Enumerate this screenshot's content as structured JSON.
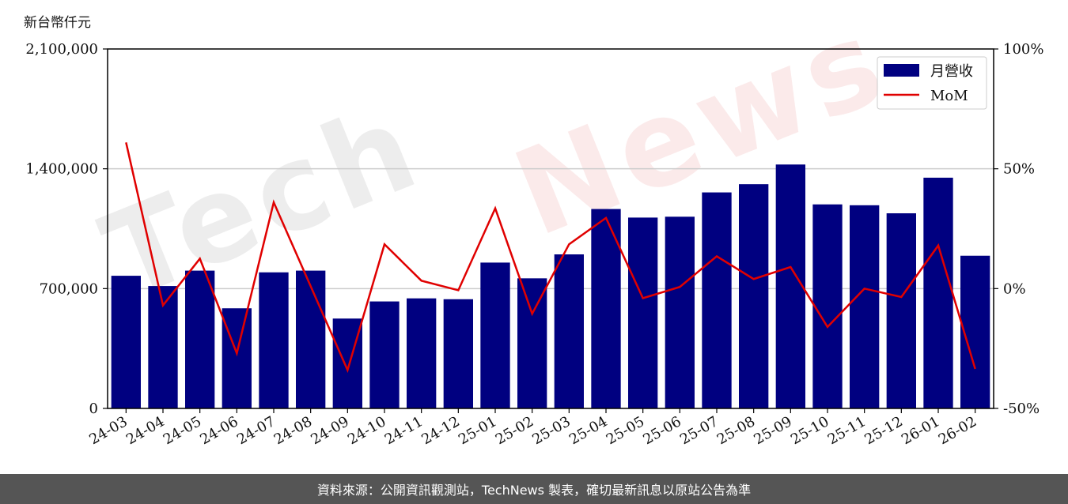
{
  "unit_label": "新台幣仟元",
  "footer_text": "資料來源：公開資訊觀測站，TechNews 製表，確切最新訊息以原站公告為準",
  "watermark": {
    "left": "Tech",
    "right": "News"
  },
  "colors": {
    "bar": "#000080",
    "line": "#e00000",
    "grid": "#cccccc",
    "footer_bg": "#555555"
  },
  "chart_data": {
    "type": "bar",
    "categories": [
      "24-03",
      "24-04",
      "24-05",
      "24-06",
      "24-07",
      "24-08",
      "24-09",
      "24-10",
      "24-11",
      "24-12",
      "25-01",
      "25-02",
      "25-03",
      "25-04",
      "25-05",
      "25-06",
      "25-07",
      "25-08",
      "25-09",
      "25-10",
      "25-11",
      "25-12",
      "26-01",
      "26-02"
    ],
    "series": [
      {
        "name": "月營收",
        "type": "bar",
        "axis": "left",
        "values": [
          775000,
          715000,
          805000,
          585000,
          795000,
          805000,
          525000,
          625000,
          643000,
          638000,
          852000,
          760000,
          900000,
          1165000,
          1115000,
          1120000,
          1262000,
          1310000,
          1425000,
          1192000,
          1187000,
          1140000,
          1348000,
          892000
        ]
      },
      {
        "name": "MoM",
        "type": "line",
        "axis": "right",
        "values": [
          61,
          -7,
          12.5,
          -27,
          36,
          1,
          -34,
          18.5,
          3.3,
          -0.7,
          33.5,
          -10.5,
          18.5,
          29.5,
          -4,
          0.7,
          13.5,
          4,
          9,
          -16,
          0,
          -3.5,
          18,
          -33.5
        ]
      }
    ],
    "y_left": {
      "ylim": [
        0,
        2100000
      ],
      "ticks": [
        "0",
        "700,000",
        "1,400,000",
        "2,100,000"
      ],
      "tick_values": [
        0,
        700000,
        1400000,
        2100000
      ]
    },
    "y_right": {
      "ylim": [
        -50,
        100
      ],
      "ticks": [
        "-50%",
        "0%",
        "50%",
        "100%"
      ],
      "tick_values": [
        -50,
        0,
        50,
        100
      ]
    },
    "grid": "horizontal",
    "legend_position": "top-right"
  }
}
